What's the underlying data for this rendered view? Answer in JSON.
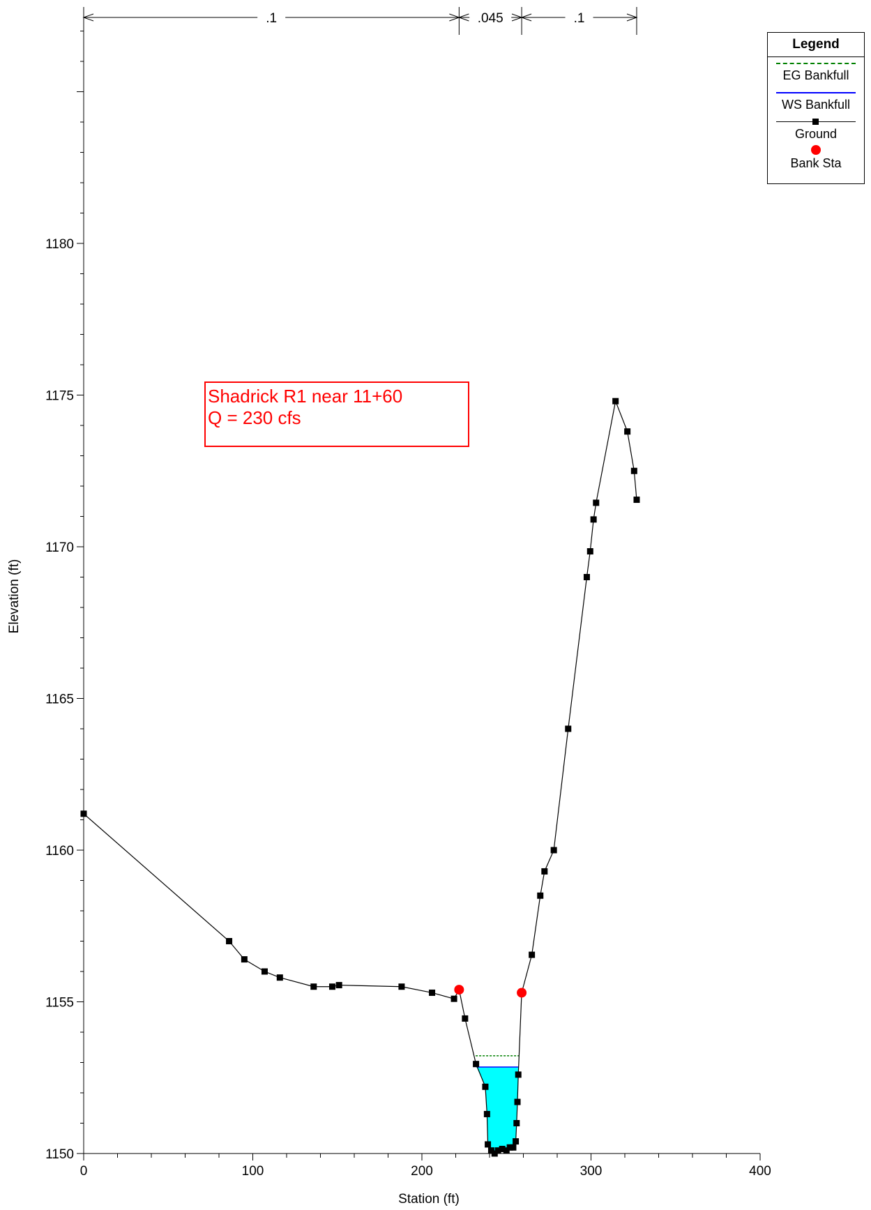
{
  "chart_data": {
    "type": "line",
    "xlabel": "Station (ft)",
    "ylabel": "Elevation (ft)",
    "xlim": [
      0,
      400
    ],
    "ylim": [
      1150,
      1185
    ],
    "x_ticks": [
      "0",
      "100",
      "200",
      "300",
      "400"
    ],
    "y_ticks": [
      "1150",
      "1155",
      "1160",
      "1165",
      "1170",
      "1175",
      "1180"
    ],
    "roughness": [
      {
        "label": ".1",
        "from": 0,
        "to": 222
      },
      {
        "label": ".045",
        "from": 222,
        "to": 259
      },
      {
        "label": ".1",
        "from": 259,
        "to": 327
      }
    ],
    "ground": [
      [
        0,
        1161.2
      ],
      [
        86,
        1157.0
      ],
      [
        95,
        1156.4
      ],
      [
        107,
        1156.0
      ],
      [
        116,
        1155.8
      ],
      [
        136,
        1155.5
      ],
      [
        147,
        1155.5
      ],
      [
        151,
        1155.55
      ],
      [
        188,
        1155.5
      ],
      [
        206,
        1155.3
      ],
      [
        219,
        1155.1
      ],
      [
        222,
        1155.4
      ],
      [
        225.5,
        1154.45
      ],
      [
        232,
        1152.95
      ],
      [
        237.5,
        1152.2
      ],
      [
        238.5,
        1151.3
      ],
      [
        239,
        1150.3
      ],
      [
        241,
        1150.1
      ],
      [
        243,
        1150.0
      ],
      [
        245,
        1150.1
      ],
      [
        247.5,
        1150.15
      ],
      [
        250,
        1150.1
      ],
      [
        252,
        1150.2
      ],
      [
        254,
        1150.2
      ],
      [
        255.5,
        1150.4
      ],
      [
        256,
        1151.0
      ],
      [
        256.5,
        1151.7
      ],
      [
        257,
        1152.6
      ],
      [
        259,
        1155.3
      ],
      [
        265,
        1156.55
      ],
      [
        270,
        1158.5
      ],
      [
        272.5,
        1159.3
      ],
      [
        278,
        1160.0
      ],
      [
        286.5,
        1164.0
      ],
      [
        297.5,
        1169.0
      ],
      [
        299.5,
        1169.85
      ],
      [
        301.5,
        1170.9
      ],
      [
        303,
        1171.45
      ],
      [
        314.5,
        1174.8
      ],
      [
        321.5,
        1173.8
      ],
      [
        325.5,
        1172.5
      ],
      [
        327,
        1171.55
      ]
    ],
    "ws_bankfull": {
      "elevation": 1152.85,
      "from": 232.3,
      "to": 257.0
    },
    "eg_bankfull": {
      "elevation": 1153.22,
      "from": 231.8,
      "to": 257.3
    },
    "bank_stations": [
      [
        222,
        1155.4
      ],
      [
        259,
        1155.3
      ]
    ],
    "colors": {
      "ground": "#000000",
      "water_fill": "#00ffff",
      "ws_line": "#0000ff",
      "eg_line": "#008000",
      "bank_sta": "#ff0000",
      "annotation": "#ff0000"
    },
    "legend": {
      "title": "Legend",
      "position": "top-right",
      "entries": [
        "EG Bankfull",
        "WS Bankfull",
        "Ground",
        "Bank Sta"
      ]
    },
    "annotation": [
      "Shadrick R1 near 11+60",
      "Q = 230 cfs"
    ]
  }
}
